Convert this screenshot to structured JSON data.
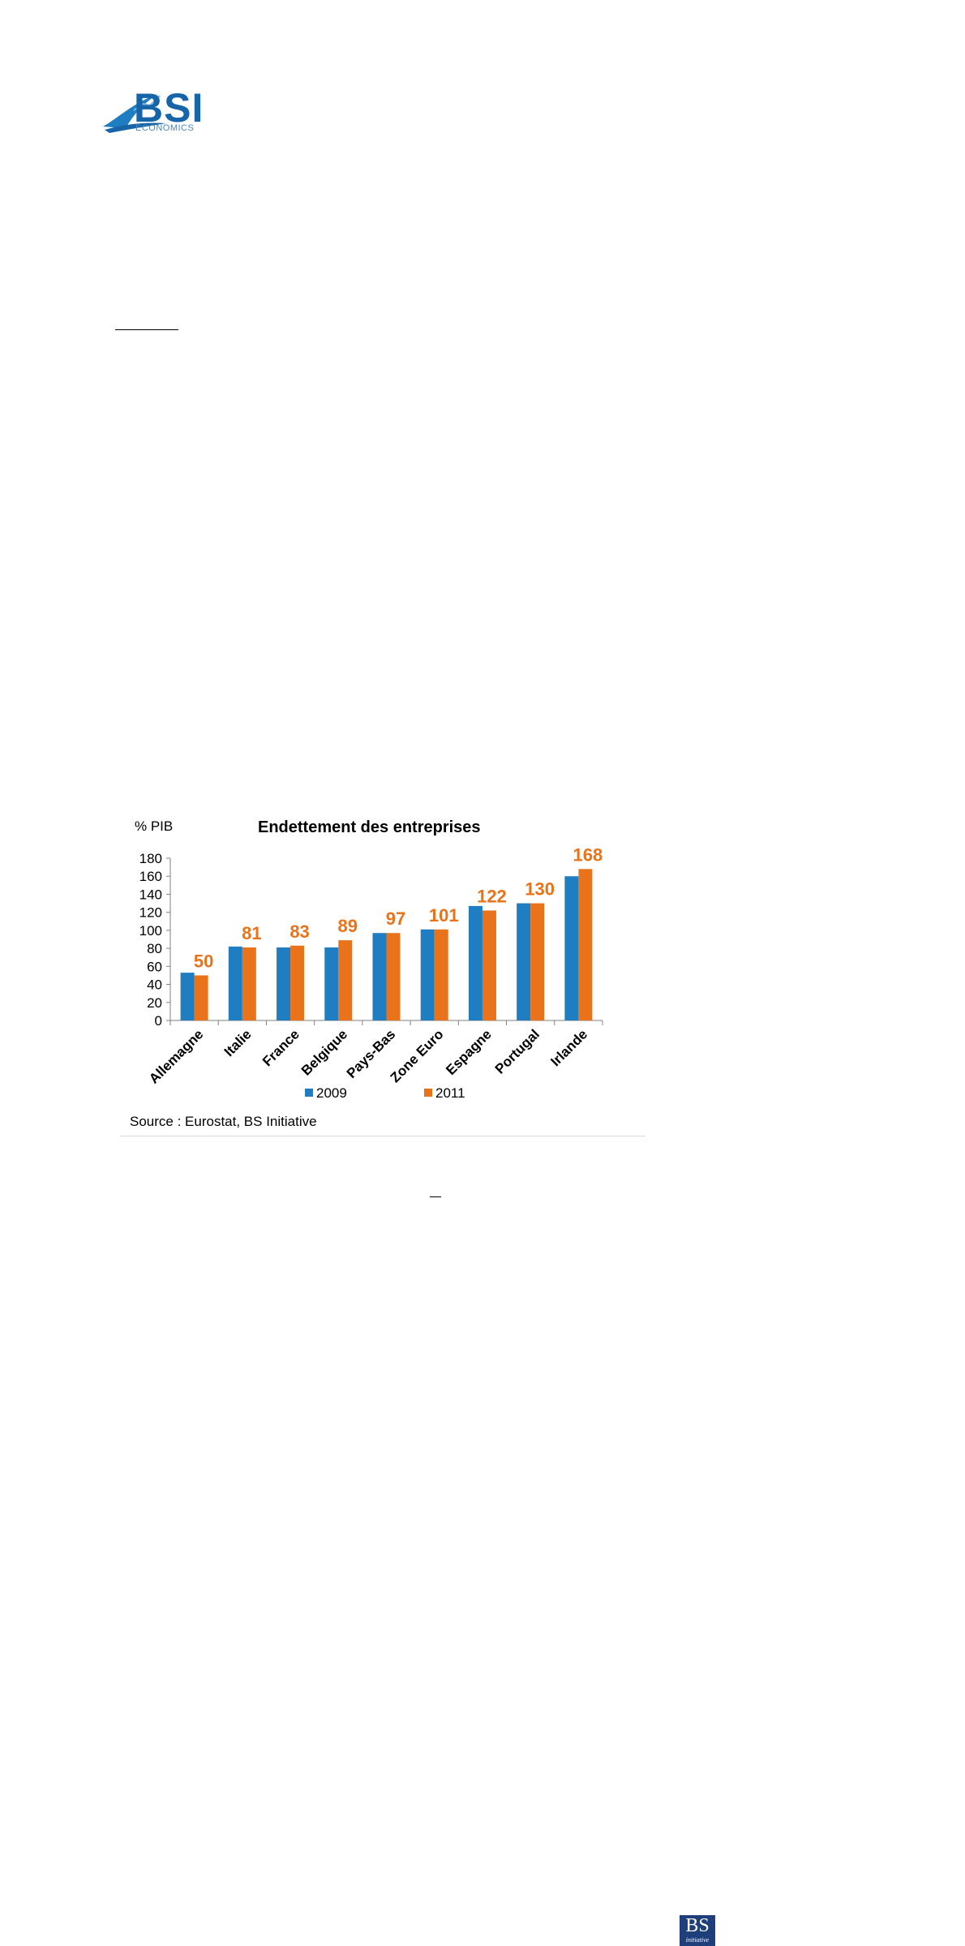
{
  "header": {
    "logo_text": "BSI",
    "logo_subtext": "ECONOMICS"
  },
  "chart_data": {
    "type": "bar",
    "title": "Endettement des entreprises",
    "ylabel": "% PIB",
    "xlabel": "",
    "ylim": [
      0,
      180
    ],
    "yticks": [
      0,
      20,
      40,
      60,
      80,
      100,
      120,
      140,
      160,
      180
    ],
    "categories": [
      "Allemagne",
      "Italie",
      "France",
      "Belgique",
      "Pays-Bas",
      "Zone Euro",
      "Espagne",
      "Portugal",
      "Irlande"
    ],
    "series": [
      {
        "name": "2009",
        "color": "#1f7dc1",
        "values": [
          53,
          82,
          81,
          81,
          97,
          101,
          127,
          130,
          160
        ]
      },
      {
        "name": "2011",
        "color": "#e8731a",
        "values": [
          50,
          81,
          83,
          89,
          97,
          101,
          122,
          130,
          168
        ]
      }
    ],
    "data_labels_series": "2011",
    "data_label_color": "#e8731a",
    "legend": "bottom",
    "grid": false,
    "source": "Source : Eurostat, BS Initiative"
  },
  "badge": {
    "main": "BS",
    "sub": "initiative"
  }
}
